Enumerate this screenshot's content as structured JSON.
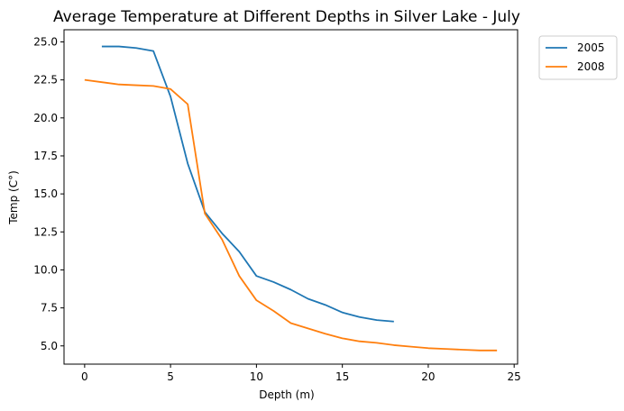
{
  "chart_data": {
    "type": "line",
    "title": "Average Temperature at Different Depths in Silver Lake - July",
    "xlabel": "Depth (m)",
    "ylabel": "Temp (C°)",
    "xlim": [
      -1.2,
      25.2
    ],
    "ylim": [
      3.8,
      25.8
    ],
    "xticks": [
      0,
      5,
      10,
      15,
      20,
      25
    ],
    "xtick_labels": [
      "0",
      "5",
      "10",
      "15",
      "20",
      "25"
    ],
    "yticks": [
      5.0,
      7.5,
      10.0,
      12.5,
      15.0,
      17.5,
      20.0,
      22.5,
      25.0
    ],
    "ytick_labels": [
      "5.0",
      "7.5",
      "10.0",
      "12.5",
      "15.0",
      "17.5",
      "20.0",
      "22.5",
      "25.0"
    ],
    "grid": false,
    "legend_position": "outside top-right",
    "series": [
      {
        "name": "2005",
        "color": "#1f77b4",
        "x": [
          1,
          2,
          3,
          4,
          5,
          6,
          7,
          8,
          9,
          10,
          11,
          12,
          13,
          14,
          15,
          16,
          17,
          18
        ],
        "y": [
          24.7,
          24.7,
          24.6,
          24.4,
          21.4,
          17.0,
          13.8,
          12.4,
          11.2,
          9.6,
          9.2,
          8.7,
          8.1,
          7.7,
          7.2,
          6.9,
          6.7,
          6.6
        ]
      },
      {
        "name": "2008",
        "color": "#ff7f0e",
        "x": [
          0,
          1,
          2,
          3,
          4,
          5,
          6,
          7,
          8,
          9,
          10,
          11,
          12,
          13,
          14,
          15,
          16,
          17,
          18,
          19,
          20,
          21,
          22,
          23,
          24
        ],
        "y": [
          22.5,
          22.35,
          22.2,
          22.15,
          22.1,
          21.9,
          20.9,
          13.7,
          12.0,
          9.6,
          8.0,
          7.3,
          6.5,
          6.15,
          5.8,
          5.5,
          5.3,
          5.2,
          5.05,
          4.95,
          4.85,
          4.8,
          4.75,
          4.7,
          4.7
        ]
      }
    ]
  }
}
